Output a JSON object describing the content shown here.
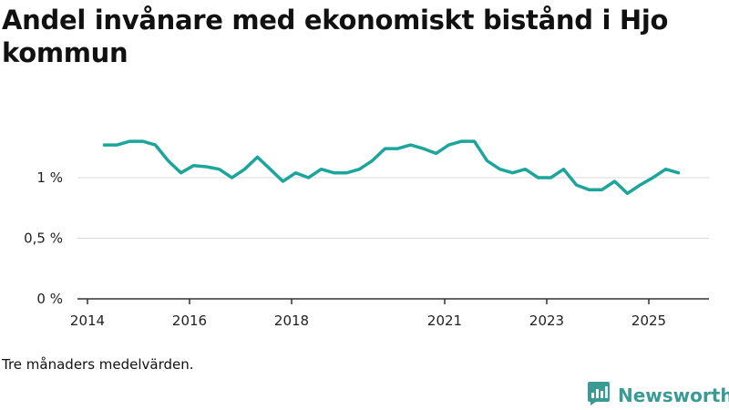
{
  "title": "Andel invånare med ekonomiskt bistånd i Hjo kommun",
  "note": "Tre månaders medelvärden.",
  "brand": {
    "name": "Newsworthy",
    "icon": "newsworthy-logo-icon",
    "color": "#3a9b95"
  },
  "colors": {
    "line": "#1ca59b",
    "grid": "#d9d9d9",
    "axis": "#333333"
  },
  "chart_data": {
    "type": "line",
    "title": "Andel invånare med ekonomiskt bistånd i Hjo kommun",
    "xlabel": "",
    "ylabel": "",
    "xlim": [
      2014.0,
      2026.0
    ],
    "ylim": [
      0,
      1.5
    ],
    "y_ticks": [
      {
        "value": 0,
        "label": "0 %"
      },
      {
        "value": 0.5,
        "label": "0,5 %"
      },
      {
        "value": 1,
        "label": "1 %"
      }
    ],
    "x_ticks": [
      {
        "value": 2014.0,
        "label": "2014"
      },
      {
        "value": 2016.0,
        "label": "2016"
      },
      {
        "value": 2018.0,
        "label": "2018"
      },
      {
        "value": 2021.0,
        "label": "2021"
      },
      {
        "value": 2023.0,
        "label": "2023"
      },
      {
        "value": 2025.0,
        "label": "2025"
      }
    ],
    "grid": true,
    "series": [
      {
        "name": "Andel invånare med ekonomiskt bistånd",
        "x": [
          2014.33,
          2014.58,
          2014.83,
          2015.08,
          2015.33,
          2015.58,
          2015.83,
          2016.08,
          2016.33,
          2016.58,
          2016.83,
          2017.08,
          2017.33,
          2017.58,
          2017.83,
          2018.08,
          2018.33,
          2018.58,
          2018.83,
          2019.08,
          2019.33,
          2019.58,
          2019.83,
          2020.08,
          2020.33,
          2020.58,
          2020.83,
          2021.08,
          2021.33,
          2021.58,
          2021.83,
          2022.08,
          2022.33,
          2022.58,
          2022.83,
          2023.08,
          2023.33,
          2023.58,
          2023.83,
          2024.08,
          2024.33,
          2024.58,
          2024.83,
          2025.08,
          2025.33,
          2025.58
        ],
        "values": [
          1.27,
          1.27,
          1.3,
          1.3,
          1.27,
          1.14,
          1.04,
          1.1,
          1.09,
          1.07,
          1.0,
          1.07,
          1.17,
          1.07,
          0.97,
          1.04,
          1.0,
          1.07,
          1.04,
          1.04,
          1.07,
          1.14,
          1.24,
          1.24,
          1.27,
          1.24,
          1.2,
          1.27,
          1.3,
          1.3,
          1.14,
          1.07,
          1.04,
          1.07,
          1.0,
          1.0,
          1.07,
          0.94,
          0.9,
          0.9,
          0.97,
          0.87,
          0.94,
          1.0,
          1.07,
          1.04
        ]
      }
    ]
  }
}
